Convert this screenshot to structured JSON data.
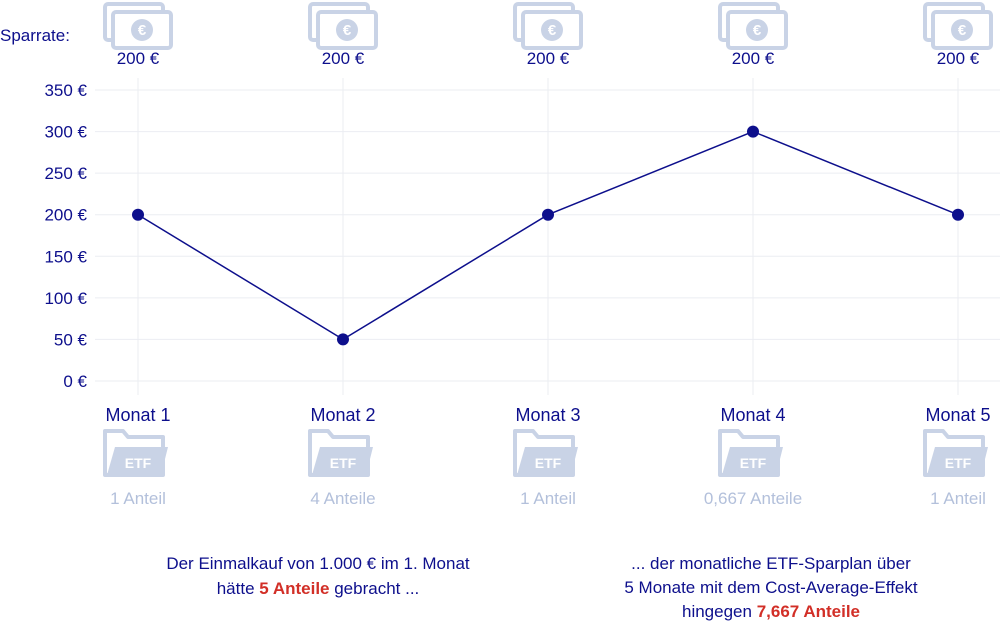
{
  "sparrate_label": "Sparrate:",
  "colors": {
    "navy": "#0d0f8c",
    "pale_icon": "#c9d3e6",
    "pale_text": "#b3c0db",
    "highlight": "#d22f27",
    "grid": "#ebedf2"
  },
  "icons": {
    "top": "euro-banknote-icon",
    "bottom": "etf-folder-icon"
  },
  "chart_data": {
    "type": "line",
    "categories": [
      "Monat 1",
      "Monat 2",
      "Monat 3",
      "Monat 4",
      "Monat 5"
    ],
    "series": [
      {
        "values": [
          200,
          50,
          200,
          300,
          200
        ]
      }
    ],
    "ylim": [
      0,
      350
    ],
    "yticks": [
      "0 €",
      "50 €",
      "100 €",
      "150 €",
      "200 €",
      "250 €",
      "300 €",
      "350 €"
    ],
    "grid": true,
    "sparrate": [
      "200 €",
      "200 €",
      "200 €",
      "200 €",
      "200 €"
    ],
    "anteile": [
      "1 Anteil",
      "4 Anteile",
      "1 Anteil",
      "0,667 Anteile",
      "1 Anteil"
    ]
  },
  "notes": {
    "left": {
      "line1": "Der Einmalkauf von 1.000 € im 1. Monat",
      "line2_prefix": "hätte ",
      "line2_highlight": "5 Anteile",
      "line2_suffix": " gebracht ..."
    },
    "right": {
      "line1": "... der monatliche ETF-Sparplan über",
      "line2": "5 Monate mit dem Cost-Average-Effekt",
      "line3_prefix": "hingegen ",
      "line3_highlight": "7,667 Anteile"
    }
  }
}
